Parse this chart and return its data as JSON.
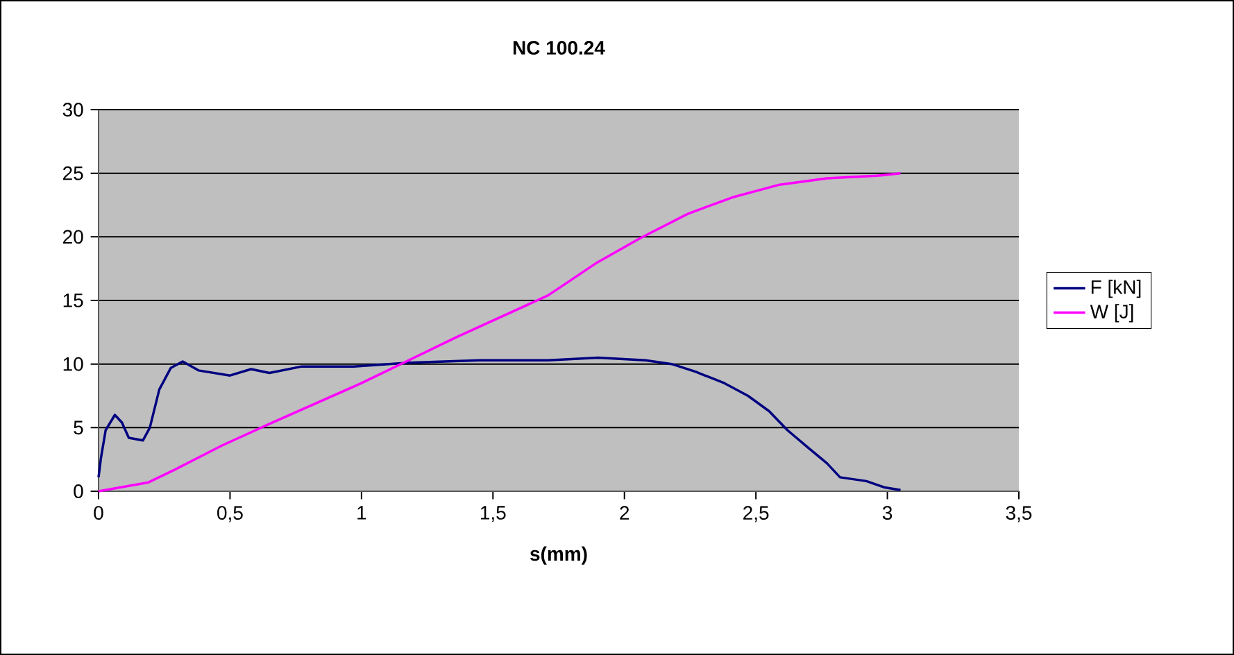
{
  "chart_data": {
    "type": "line",
    "title": "NC 100.24",
    "xlabel": "s(mm)",
    "xlim": [
      0,
      3.5
    ],
    "ylim": [
      0,
      30
    ],
    "xticks": [
      0,
      {
        "value": 0.5,
        "label": "0,5"
      },
      1,
      {
        "value": 1.5,
        "label": "1,5"
      },
      2,
      {
        "value": 2.5,
        "label": "2,5"
      },
      3,
      {
        "value": 3.5,
        "label": "3,5"
      }
    ],
    "yticks": [
      0,
      5,
      10,
      15,
      20,
      25,
      30
    ],
    "grid": "y",
    "legend": "right",
    "marker": "none",
    "line_style": "solid",
    "series": [
      {
        "name": "F [kN]",
        "color": "#000080",
        "x": [
          0,
          0.009,
          0.027,
          0.062,
          0.089,
          0.115,
          0.169,
          0.195,
          0.231,
          0.275,
          0.32,
          0.38,
          0.5,
          0.58,
          0.65,
          0.77,
          0.97,
          1.18,
          1.45,
          1.71,
          1.9,
          2.08,
          2.18,
          2.27,
          2.38,
          2.47,
          2.55,
          2.62,
          2.7,
          2.77,
          2.82,
          2.92,
          2.99,
          3.05
        ],
        "values": [
          1.1,
          2.6,
          4.8,
          6.0,
          5.4,
          4.2,
          4.0,
          5.0,
          8.0,
          9.7,
          10.2,
          9.5,
          9.1,
          9.6,
          9.3,
          9.8,
          9.8,
          10.1,
          10.3,
          10.3,
          10.5,
          10.3,
          10.0,
          9.4,
          8.5,
          7.5,
          6.3,
          4.8,
          3.4,
          2.2,
          1.1,
          0.8,
          0.3,
          0.1
        ]
      },
      {
        "name": "W [J]",
        "color": "#ff00ff",
        "x": [
          0,
          0.19,
          0.29,
          0.47,
          0.65,
          1.0,
          1.36,
          1.71,
          1.89,
          2.06,
          2.24,
          2.41,
          2.59,
          2.77,
          2.96,
          3.05
        ],
        "values": [
          0,
          0.7,
          1.7,
          3.6,
          5.3,
          8.5,
          12.1,
          15.4,
          17.9,
          19.9,
          21.8,
          23.1,
          24.1,
          24.6,
          24.8,
          25.0
        ]
      }
    ]
  }
}
